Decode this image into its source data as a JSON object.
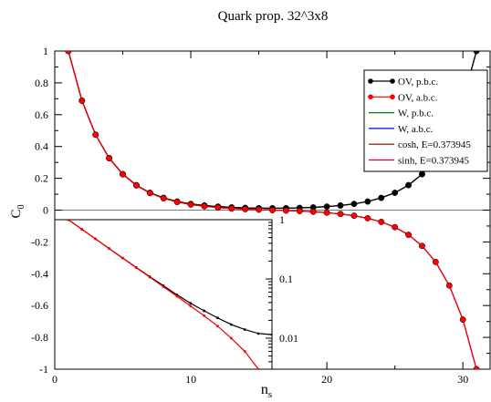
{
  "chart_data": [
    {
      "type": "line",
      "title": "Quark prop. 32^3x8",
      "xlabel": "n",
      "xlabel_sub": "s",
      "ylabel": "C",
      "ylabel_sub": "0",
      "xlim": [
        0,
        32
      ],
      "ylim": [
        -1,
        1
      ],
      "x_ticks": [
        0,
        10,
        20,
        30
      ],
      "y_ticks": [
        -1,
        -0.8,
        -0.6,
        -0.4,
        -0.2,
        0,
        0.2,
        0.4,
        0.6,
        0.8,
        1
      ],
      "x_tick_labels": [
        "0",
        "10",
        "20",
        "30"
      ],
      "y_tick_labels": [
        "-1",
        "-0.8",
        "-0.6",
        "-0.4",
        "-0.2",
        "0",
        "0.2",
        "0.4",
        "0.6",
        "0.8",
        "1"
      ],
      "grid": false,
      "legend_position": "top-right",
      "series": [
        {
          "name": "OV, p.b.c.",
          "color": "#000000",
          "marker": "circle",
          "x": [
            1,
            2,
            3,
            4,
            5,
            6,
            7,
            8,
            9,
            10,
            11,
            12,
            13,
            14,
            15,
            16,
            17,
            18,
            19,
            20,
            21,
            22,
            23,
            24,
            25,
            26,
            27,
            28,
            29,
            30,
            31
          ],
          "y": [
            1.0,
            0.688,
            0.474,
            0.327,
            0.226,
            0.157,
            0.109,
            0.077,
            0.054,
            0.039,
            0.029,
            0.022,
            0.017,
            0.014,
            0.012,
            0.0115,
            0.012,
            0.014,
            0.017,
            0.022,
            0.029,
            0.039,
            0.054,
            0.077,
            0.109,
            0.157,
            0.226,
            0.327,
            0.474,
            0.688,
            1.0
          ]
        },
        {
          "name": "OV, a.b.c.",
          "color": "#ff0000",
          "marker": "circle",
          "x": [
            1,
            2,
            3,
            4,
            5,
            6,
            7,
            8,
            9,
            10,
            11,
            12,
            13,
            14,
            15,
            16,
            17,
            18,
            19,
            20,
            21,
            22,
            23,
            24,
            25,
            26,
            27,
            28,
            29,
            30,
            31
          ],
          "y": [
            1.0,
            0.688,
            0.474,
            0.326,
            0.225,
            0.155,
            0.107,
            0.074,
            0.051,
            0.035,
            0.024,
            0.016,
            0.01,
            0.006,
            0.003,
            0.0,
            -0.003,
            -0.006,
            -0.01,
            -0.016,
            -0.024,
            -0.035,
            -0.051,
            -0.074,
            -0.107,
            -0.155,
            -0.225,
            -0.326,
            -0.474,
            -0.688,
            -1.0
          ]
        },
        {
          "name": "W, p.b.c.",
          "color": "#008000",
          "marker": "none",
          "x": [
            1,
            2,
            3,
            4,
            5,
            6,
            7,
            8,
            9,
            10,
            11,
            12,
            13,
            14,
            15,
            16,
            17,
            18,
            19,
            20,
            21,
            22,
            23,
            24,
            25,
            26,
            27,
            28,
            29,
            30,
            31
          ],
          "y": [
            1.0,
            0.688,
            0.474,
            0.327,
            0.226,
            0.157,
            0.109,
            0.077,
            0.054,
            0.039,
            0.029,
            0.022,
            0.017,
            0.014,
            0.012,
            0.0115,
            0.012,
            0.014,
            0.017,
            0.022,
            0.029,
            0.039,
            0.054,
            0.077,
            0.109,
            0.157,
            0.226,
            0.327,
            0.474,
            0.688,
            1.0
          ]
        },
        {
          "name": "W, a.b.c.",
          "color": "#0000ff",
          "marker": "none",
          "x": [
            1,
            2,
            3,
            4,
            5,
            6,
            7,
            8,
            9,
            10,
            11,
            12,
            13,
            14,
            15,
            16,
            17,
            18,
            19,
            20,
            21,
            22,
            23,
            24,
            25,
            26,
            27,
            28,
            29,
            30,
            31
          ],
          "y": [
            1.0,
            0.688,
            0.474,
            0.326,
            0.225,
            0.155,
            0.107,
            0.074,
            0.051,
            0.035,
            0.024,
            0.016,
            0.01,
            0.006,
            0.003,
            0.0,
            -0.003,
            -0.006,
            -0.01,
            -0.016,
            -0.024,
            -0.035,
            -0.051,
            -0.074,
            -0.107,
            -0.155,
            -0.225,
            -0.326,
            -0.474,
            -0.688,
            -1.0
          ]
        },
        {
          "name": "cosh, E=0.373945",
          "color": "#800000",
          "marker": "none",
          "x": [
            1,
            2,
            3,
            4,
            5,
            6,
            7,
            8,
            9,
            10,
            11,
            12,
            13,
            14,
            15,
            16,
            17,
            18,
            19,
            20,
            21,
            22,
            23,
            24,
            25,
            26,
            27,
            28,
            29,
            30,
            31
          ],
          "y": [
            1.0,
            0.688,
            0.474,
            0.327,
            0.226,
            0.157,
            0.109,
            0.077,
            0.054,
            0.039,
            0.029,
            0.022,
            0.017,
            0.014,
            0.012,
            0.0115,
            0.012,
            0.014,
            0.017,
            0.022,
            0.029,
            0.039,
            0.054,
            0.077,
            0.109,
            0.157,
            0.226,
            0.327,
            0.474,
            0.688,
            1.0
          ]
        },
        {
          "name": "sinh, E=0.373945",
          "color": "#cc0033",
          "marker": "none",
          "x": [
            1,
            2,
            3,
            4,
            5,
            6,
            7,
            8,
            9,
            10,
            11,
            12,
            13,
            14,
            15,
            16,
            17,
            18,
            19,
            20,
            21,
            22,
            23,
            24,
            25,
            26,
            27,
            28,
            29,
            30,
            31
          ],
          "y": [
            1.0,
            0.688,
            0.474,
            0.326,
            0.225,
            0.155,
            0.107,
            0.074,
            0.051,
            0.035,
            0.024,
            0.016,
            0.01,
            0.006,
            0.003,
            0.0,
            -0.003,
            -0.006,
            -0.01,
            -0.016,
            -0.024,
            -0.035,
            -0.051,
            -0.074,
            -0.107,
            -0.155,
            -0.225,
            -0.326,
            -0.474,
            -0.688,
            -1.0
          ]
        }
      ]
    },
    {
      "type": "line",
      "title": "",
      "xlim": [
        0,
        16
      ],
      "ylim": [
        0.003,
        1
      ],
      "log_y": true,
      "y_ticks": [
        1,
        0.1,
        0.01
      ],
      "y_tick_labels": [
        "1",
        "0.1",
        "0.01"
      ],
      "grid": false,
      "series": [
        {
          "name": "OV, p.b.c.",
          "color": "#000000",
          "marker": "dot",
          "x": [
            1,
            2,
            3,
            4,
            5,
            6,
            7,
            8,
            9,
            10,
            11,
            12,
            13,
            14,
            15,
            16
          ],
          "y": [
            1.0,
            0.688,
            0.474,
            0.327,
            0.226,
            0.157,
            0.109,
            0.077,
            0.054,
            0.039,
            0.029,
            0.022,
            0.017,
            0.014,
            0.012,
            0.0115
          ]
        },
        {
          "name": "OV, a.b.c.",
          "color": "#ff0000",
          "marker": "dot",
          "x": [
            1,
            2,
            3,
            4,
            5,
            6,
            7,
            8,
            9,
            10,
            11,
            12,
            13,
            14,
            15
          ],
          "y": [
            1.0,
            0.688,
            0.474,
            0.326,
            0.225,
            0.155,
            0.107,
            0.074,
            0.051,
            0.035,
            0.024,
            0.016,
            0.01,
            0.006,
            0.003
          ]
        },
        {
          "name": "cosh, E=0.373945",
          "color": "#556b2f",
          "marker": "none",
          "x": [
            1,
            2,
            3,
            4,
            5,
            6,
            7,
            8,
            9,
            10,
            11,
            12,
            13,
            14,
            15,
            16
          ],
          "y": [
            1.0,
            0.688,
            0.474,
            0.327,
            0.226,
            0.157,
            0.109,
            0.077,
            0.054,
            0.039,
            0.029,
            0.022,
            0.017,
            0.014,
            0.012,
            0.0115
          ]
        },
        {
          "name": "sinh, E=0.373945",
          "color": "#cc0033",
          "marker": "none",
          "x": [
            1,
            2,
            3,
            4,
            5,
            6,
            7,
            8,
            9,
            10,
            11,
            12,
            13,
            14,
            15
          ],
          "y": [
            1.0,
            0.688,
            0.474,
            0.326,
            0.225,
            0.155,
            0.107,
            0.074,
            0.051,
            0.035,
            0.024,
            0.016,
            0.01,
            0.006,
            0.003
          ]
        }
      ]
    }
  ]
}
